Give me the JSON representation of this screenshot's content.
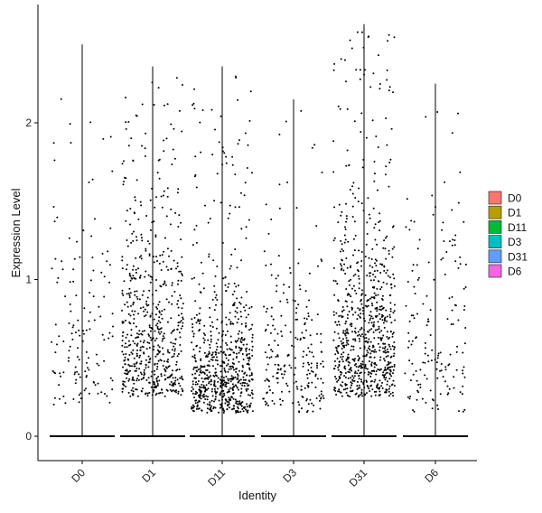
{
  "chart_data": {
    "type": "scatter",
    "subtype": "jittered-strip-violin",
    "title": "",
    "xlabel": "Identity",
    "ylabel": "Expression Level",
    "categories": [
      "D0",
      "D1",
      "D11",
      "D3",
      "D31",
      "D6"
    ],
    "ylim": [
      -0.15,
      2.65
    ],
    "yticks": [
      0,
      1,
      2
    ],
    "ytick_labels": [
      "0",
      "1",
      "2"
    ],
    "grid": false,
    "legend_position": "right",
    "legend": [
      {
        "label": "D0",
        "color": "#F8766D"
      },
      {
        "label": "D1",
        "color": "#B79F00"
      },
      {
        "label": "D11",
        "color": "#00BA38"
      },
      {
        "label": "D3",
        "color": "#00BFC4"
      },
      {
        "label": "D31",
        "color": "#619CFF"
      },
      {
        "label": "D6",
        "color": "#F564E3"
      }
    ],
    "series": [
      {
        "category": "D0",
        "max": 2.5,
        "nonzero": 140,
        "dense_min": 0.2,
        "dense_max": 2.5,
        "sigma": 0.65
      },
      {
        "category": "D1",
        "max": 2.36,
        "nonzero": 600,
        "dense_min": 0.25,
        "dense_max": 2.3,
        "sigma": 0.55
      },
      {
        "category": "D11",
        "max": 2.36,
        "nonzero": 700,
        "dense_min": 0.15,
        "dense_max": 2.3,
        "sigma": 0.35
      },
      {
        "category": "D3",
        "max": 2.15,
        "nonzero": 230,
        "dense_min": 0.15,
        "dense_max": 2.1,
        "sigma": 0.45
      },
      {
        "category": "D31",
        "max": 2.63,
        "nonzero": 780,
        "dense_min": 0.25,
        "dense_max": 2.6,
        "sigma": 0.5
      },
      {
        "category": "D6",
        "max": 2.25,
        "nonzero": 160,
        "dense_min": 0.15,
        "dense_max": 2.2,
        "sigma": 0.6
      }
    ]
  }
}
